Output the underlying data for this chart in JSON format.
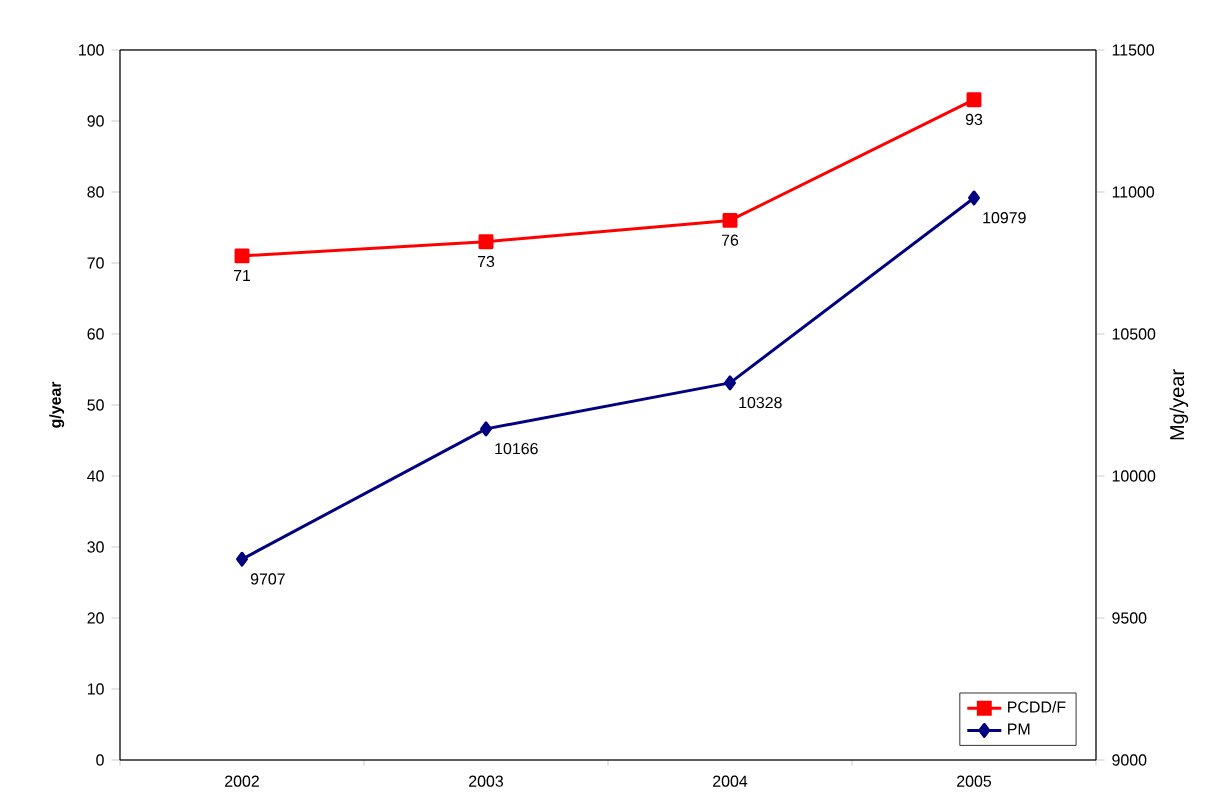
{
  "chart_data": {
    "type": "line",
    "ylabel": "g/year",
    "y2label": "Mg/year",
    "categories": [
      "2002",
      "2003",
      "2004",
      "2005"
    ],
    "series": [
      {
        "name": "PCDD/F",
        "color": "#ff0000",
        "marker": "square",
        "values": [
          71,
          73,
          76,
          93
        ]
      },
      {
        "name": "PM",
        "color": "#000080",
        "marker": "diamond",
        "axis": "y2",
        "values": [
          9707,
          10166,
          10328,
          10979
        ]
      }
    ],
    "ylim": [
      0,
      100
    ],
    "yticks": [
      0,
      10,
      20,
      30,
      40,
      50,
      60,
      70,
      80,
      90,
      100
    ],
    "y2lim": [
      9000,
      11500
    ],
    "y2ticks": [
      9000,
      9500,
      10000,
      10500,
      11000,
      11500
    ],
    "data_labels": true,
    "legend": "bottom right",
    "grid": false,
    "line_style": "solid"
  }
}
